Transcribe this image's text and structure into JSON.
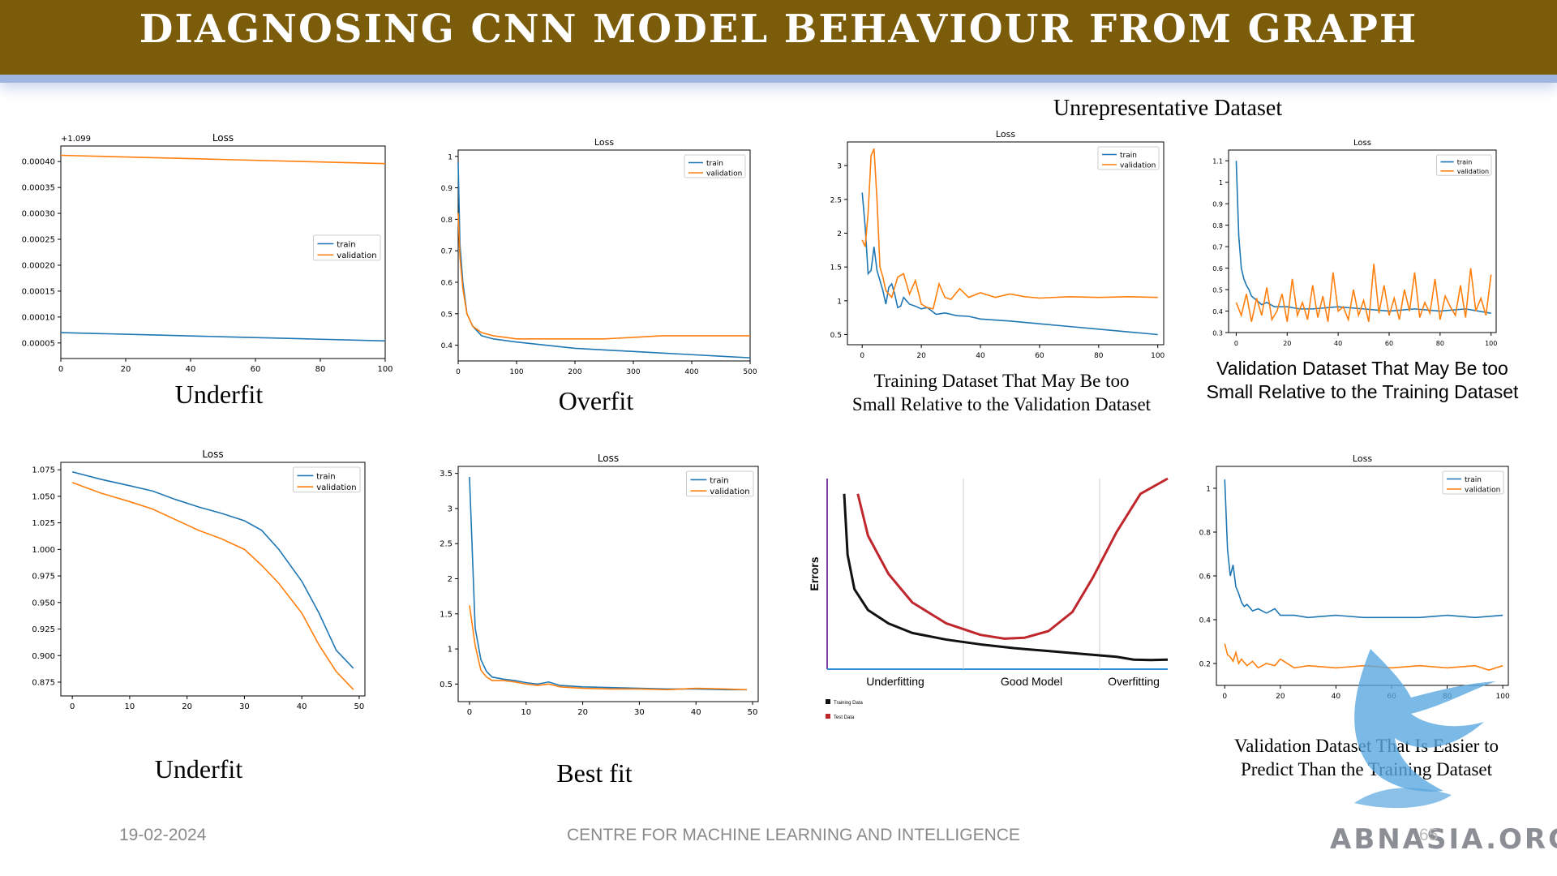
{
  "page": {
    "title": "DIAGNOSING CNN MODEL BEHAVIOUR FROM GRAPH",
    "group_heading": "Unrepresentative Dataset",
    "footer_date": "19-02-2024",
    "footer_center": "CENTRE FOR MACHINE LEARNING AND INTELLIGENCE",
    "footer_page": "65",
    "logo_text": "ABNASIA.ORG",
    "colors": {
      "banner": "#7a5c0a",
      "train": "#1f77b4",
      "validation": "#ff7f0e",
      "training_data": "#111111",
      "test_data": "#c0272d",
      "axis_line": "#2a8fd6",
      "errors_axis": "#7a3fa0"
    }
  },
  "captions": {
    "c1": "Underfit",
    "c2": "Overfit",
    "c3": "Training Dataset That May Be too Small Relative to the Validation Dataset",
    "c4": "Validation Dataset That May Be too Small Relative to the Training Dataset",
    "c5": "Underfit",
    "c6": "Best fit",
    "c8": "Validation Dataset That Is Easier to Predict Than the Training Dataset"
  },
  "chart_data": [
    {
      "id": "p1",
      "type": "line",
      "title": "Loss",
      "offset_text": "+1.099",
      "xlim": [
        0,
        100
      ],
      "ylim": [
        2e-05,
        0.00043
      ],
      "xticks": [
        0,
        20,
        40,
        60,
        80,
        100
      ],
      "yticks": [
        5e-05,
        0.0001,
        0.00015,
        0.0002,
        0.00025,
        0.0003,
        0.00035,
        0.0004
      ],
      "ytick_labels": [
        "0.00005",
        "0.00010",
        "0.00015",
        "0.00020",
        "0.00025",
        "0.00030",
        "0.00035",
        "0.00040"
      ],
      "legend": "center-right",
      "series": [
        {
          "name": "train",
          "x": [
            0,
            25,
            50,
            75,
            100
          ],
          "y": [
            7e-05,
            6.6e-05,
            6.2e-05,
            5.8e-05,
            5.4e-05
          ]
        },
        {
          "name": "validation",
          "x": [
            0,
            25,
            50,
            75,
            100
          ],
          "y": [
            0.000412,
            0.000408,
            0.000404,
            0.0004,
            0.000396
          ]
        }
      ]
    },
    {
      "id": "p2",
      "type": "line",
      "title": "Loss",
      "xlim": [
        0,
        500
      ],
      "ylim": [
        0.35,
        1.02
      ],
      "xticks": [
        0,
        100,
        200,
        300,
        400,
        500
      ],
      "yticks": [
        0.4,
        0.5,
        0.6,
        0.7,
        0.8,
        0.9,
        1.0
      ],
      "legend": "top-right",
      "series": [
        {
          "name": "train",
          "x": [
            0,
            3,
            8,
            15,
            25,
            40,
            60,
            100,
            150,
            200,
            250,
            300,
            350,
            400,
            450,
            500
          ],
          "y": [
            0.98,
            0.72,
            0.6,
            0.5,
            0.46,
            0.43,
            0.42,
            0.41,
            0.4,
            0.39,
            0.385,
            0.38,
            0.375,
            0.37,
            0.365,
            0.36
          ]
        },
        {
          "name": "validation",
          "x": [
            0,
            3,
            8,
            15,
            25,
            40,
            60,
            100,
            150,
            200,
            250,
            300,
            350,
            400,
            450,
            500
          ],
          "y": [
            0.82,
            0.68,
            0.58,
            0.5,
            0.46,
            0.44,
            0.43,
            0.42,
            0.42,
            0.42,
            0.42,
            0.425,
            0.43,
            0.43,
            0.43,
            0.43
          ]
        }
      ]
    },
    {
      "id": "p3",
      "type": "line",
      "title": "Loss",
      "xlim": [
        -5,
        102
      ],
      "ylim": [
        0.35,
        3.35
      ],
      "xticks": [
        0,
        20,
        40,
        60,
        80,
        100
      ],
      "yticks": [
        0.5,
        1.0,
        1.5,
        2.0,
        2.5,
        3.0
      ],
      "legend": "top-right",
      "series": [
        {
          "name": "train",
          "x": [
            0,
            1,
            2,
            3,
            4,
            5,
            6,
            7,
            8,
            9,
            10,
            11,
            12,
            13,
            14,
            15,
            16,
            18,
            20,
            22,
            25,
            28,
            32,
            36,
            40,
            50,
            60,
            70,
            80,
            90,
            100
          ],
          "y": [
            2.6,
            2.1,
            1.4,
            1.45,
            1.8,
            1.45,
            1.3,
            1.15,
            0.95,
            1.2,
            1.25,
            1.1,
            0.9,
            0.92,
            1.05,
            1.0,
            0.95,
            0.92,
            0.88,
            0.9,
            0.8,
            0.82,
            0.78,
            0.77,
            0.73,
            0.7,
            0.66,
            0.62,
            0.58,
            0.54,
            0.5
          ]
        },
        {
          "name": "validation",
          "x": [
            0,
            1,
            2,
            3,
            4,
            5,
            6,
            7,
            8,
            9,
            10,
            11,
            12,
            14,
            16,
            18,
            20,
            22,
            24,
            26,
            28,
            30,
            33,
            36,
            40,
            45,
            50,
            55,
            60,
            70,
            80,
            90,
            100
          ],
          "y": [
            1.9,
            1.8,
            2.3,
            3.15,
            3.25,
            2.5,
            1.5,
            1.35,
            1.15,
            1.1,
            1.05,
            1.2,
            1.35,
            1.4,
            1.1,
            1.3,
            0.95,
            0.9,
            0.88,
            1.25,
            1.05,
            1.02,
            1.18,
            1.05,
            1.12,
            1.05,
            1.1,
            1.06,
            1.04,
            1.06,
            1.05,
            1.06,
            1.05
          ]
        }
      ]
    },
    {
      "id": "p4",
      "type": "line",
      "title": "Loss",
      "xlim": [
        -3,
        102
      ],
      "ylim": [
        0.3,
        1.15
      ],
      "xticks": [
        0,
        20,
        40,
        60,
        80,
        100
      ],
      "yticks": [
        0.3,
        0.4,
        0.5,
        0.6,
        0.7,
        0.8,
        0.9,
        1.0,
        1.1
      ],
      "legend": "top-right",
      "series": [
        {
          "name": "train",
          "x": [
            0,
            1,
            2,
            3,
            4,
            5,
            6,
            8,
            10,
            12,
            15,
            20,
            25,
            30,
            40,
            50,
            60,
            70,
            80,
            90,
            100
          ],
          "y": [
            1.1,
            0.75,
            0.6,
            0.55,
            0.52,
            0.5,
            0.47,
            0.45,
            0.43,
            0.44,
            0.42,
            0.42,
            0.41,
            0.41,
            0.42,
            0.41,
            0.4,
            0.41,
            0.4,
            0.41,
            0.39
          ]
        },
        {
          "name": "validation",
          "x": [
            0,
            2,
            4,
            6,
            8,
            10,
            12,
            14,
            16,
            18,
            20,
            22,
            24,
            26,
            28,
            30,
            32,
            34,
            36,
            38,
            40,
            42,
            44,
            46,
            48,
            50,
            52,
            54,
            56,
            58,
            60,
            62,
            64,
            66,
            68,
            70,
            72,
            74,
            76,
            78,
            80,
            82,
            84,
            86,
            88,
            90,
            92,
            94,
            96,
            98,
            100
          ],
          "y": [
            0.44,
            0.38,
            0.48,
            0.35,
            0.46,
            0.38,
            0.51,
            0.36,
            0.4,
            0.48,
            0.35,
            0.55,
            0.38,
            0.44,
            0.36,
            0.52,
            0.37,
            0.47,
            0.35,
            0.58,
            0.4,
            0.42,
            0.36,
            0.5,
            0.38,
            0.45,
            0.35,
            0.62,
            0.39,
            0.52,
            0.38,
            0.46,
            0.36,
            0.5,
            0.4,
            0.58,
            0.37,
            0.44,
            0.39,
            0.55,
            0.36,
            0.47,
            0.42,
            0.38,
            0.52,
            0.37,
            0.6,
            0.4,
            0.46,
            0.38,
            0.57
          ]
        }
      ]
    },
    {
      "id": "p5",
      "type": "line",
      "title": "Loss",
      "xlim": [
        -2,
        51
      ],
      "ylim": [
        0.862,
        1.082
      ],
      "xticks": [
        0,
        10,
        20,
        30,
        40,
        50
      ],
      "yticks": [
        0.875,
        0.9,
        0.925,
        0.95,
        0.975,
        1.0,
        1.025,
        1.05,
        1.075
      ],
      "ytick_labels": [
        "0.875",
        "0.900",
        "0.925",
        "0.950",
        "0.975",
        "1.000",
        "1.025",
        "1.050",
        "1.075"
      ],
      "legend": "top-right",
      "series": [
        {
          "name": "train",
          "x": [
            0,
            5,
            10,
            14,
            18,
            22,
            26,
            30,
            33,
            36,
            40,
            43,
            46,
            49
          ],
          "y": [
            1.073,
            1.066,
            1.06,
            1.055,
            1.047,
            1.04,
            1.034,
            1.027,
            1.018,
            1.0,
            0.97,
            0.94,
            0.905,
            0.888
          ]
        },
        {
          "name": "validation",
          "x": [
            0,
            5,
            10,
            14,
            18,
            22,
            26,
            30,
            33,
            36,
            40,
            43,
            46,
            49
          ],
          "y": [
            1.063,
            1.053,
            1.045,
            1.038,
            1.028,
            1.018,
            1.01,
            1.0,
            0.985,
            0.968,
            0.94,
            0.91,
            0.885,
            0.868
          ]
        }
      ]
    },
    {
      "id": "p6",
      "type": "line",
      "title": "Loss",
      "xlim": [
        -2,
        51
      ],
      "ylim": [
        0.25,
        3.6
      ],
      "xticks": [
        0,
        10,
        20,
        30,
        40,
        50
      ],
      "yticks": [
        0.5,
        1.0,
        1.5,
        2.0,
        2.5,
        3.0,
        3.5
      ],
      "legend": "top-right",
      "series": [
        {
          "name": "train",
          "x": [
            0,
            1,
            2,
            3,
            4,
            6,
            8,
            10,
            12,
            14,
            16,
            20,
            25,
            30,
            35,
            40,
            45,
            49
          ],
          "y": [
            3.45,
            1.3,
            0.85,
            0.68,
            0.6,
            0.57,
            0.55,
            0.52,
            0.5,
            0.53,
            0.48,
            0.46,
            0.45,
            0.44,
            0.43,
            0.43,
            0.42,
            0.42
          ]
        },
        {
          "name": "validation",
          "x": [
            0,
            1,
            2,
            3,
            4,
            6,
            8,
            10,
            12,
            14,
            16,
            20,
            25,
            30,
            35,
            40,
            45,
            49
          ],
          "y": [
            1.62,
            1.05,
            0.7,
            0.6,
            0.55,
            0.55,
            0.53,
            0.5,
            0.48,
            0.5,
            0.46,
            0.44,
            0.43,
            0.43,
            0.42,
            0.44,
            0.43,
            0.42
          ]
        }
      ]
    },
    {
      "id": "p8",
      "type": "line",
      "title": "Loss",
      "xlim": [
        -3,
        102
      ],
      "ylim": [
        0.1,
        1.1
      ],
      "xticks": [
        0,
        20,
        40,
        60,
        80,
        100
      ],
      "yticks": [
        0.2,
        0.4,
        0.6,
        0.8,
        1.0
      ],
      "legend": "top-right",
      "series": [
        {
          "name": "train",
          "x": [
            0,
            1,
            2,
            3,
            4,
            5,
            6,
            7,
            8,
            10,
            12,
            15,
            18,
            20,
            25,
            30,
            40,
            50,
            60,
            70,
            80,
            90,
            100
          ],
          "y": [
            1.04,
            0.72,
            0.6,
            0.65,
            0.55,
            0.52,
            0.48,
            0.46,
            0.47,
            0.44,
            0.45,
            0.43,
            0.45,
            0.42,
            0.42,
            0.41,
            0.42,
            0.41,
            0.41,
            0.41,
            0.42,
            0.41,
            0.42
          ]
        },
        {
          "name": "validation",
          "x": [
            0,
            1,
            2,
            3,
            4,
            5,
            6,
            8,
            10,
            12,
            15,
            18,
            20,
            25,
            30,
            40,
            50,
            60,
            70,
            80,
            90,
            95,
            100
          ],
          "y": [
            0.29,
            0.24,
            0.23,
            0.21,
            0.25,
            0.2,
            0.22,
            0.19,
            0.21,
            0.18,
            0.2,
            0.19,
            0.22,
            0.18,
            0.19,
            0.18,
            0.19,
            0.18,
            0.19,
            0.18,
            0.19,
            0.17,
            0.19
          ]
        }
      ]
    },
    {
      "id": "p7",
      "type": "line",
      "title": "",
      "ylabel": "Errors",
      "regions": [
        "Underfitting",
        "Good Model",
        "Overfitting"
      ],
      "legend": "bottom-left",
      "legend_items": [
        "Training Data",
        "Test Data"
      ],
      "xlim": [
        0,
        100
      ],
      "ylim": [
        0,
        100
      ],
      "series": [
        {
          "name": "Training Data",
          "x": [
            5,
            6,
            8,
            12,
            18,
            25,
            35,
            45,
            55,
            65,
            75,
            85,
            90,
            95,
            100
          ],
          "y": [
            92,
            60,
            42,
            31,
            24,
            19,
            15.5,
            13,
            11,
            9.5,
            8,
            6.5,
            5,
            4.8,
            5
          ]
        },
        {
          "name": "Test Data",
          "x": [
            9,
            12,
            18,
            25,
            35,
            45,
            52,
            58,
            65,
            72,
            78,
            85,
            92,
            100
          ],
          "y": [
            92,
            70,
            50,
            35,
            24,
            18,
            16,
            16.5,
            20,
            30,
            48,
            72,
            92,
            100
          ]
        }
      ]
    }
  ]
}
